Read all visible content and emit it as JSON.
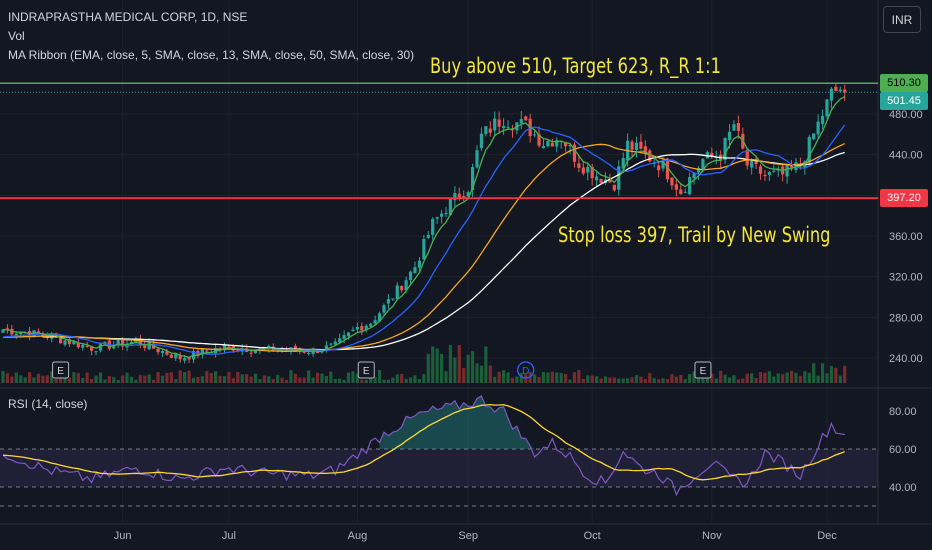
{
  "header": {
    "title": "INDRAPRASTHA MEDICAL CORP, 1D, NSE",
    "vol_label": "Vol",
    "ma_label": "MA Ribbon (EMA, close, 5, SMA, close, 13, SMA, close, 50, SMA, close, 30)"
  },
  "currency_button": "INR",
  "rsi_label": "RSI (14, close)",
  "annotations": {
    "buy": "Buy above 510, Target 623, R_R 1:1",
    "stop": "Stop loss 397, Trail by New Swing"
  },
  "price_labels": {
    "resistance": "510.30",
    "last": "501.45",
    "support": "397.20"
  },
  "colors": {
    "up": "#26a69a",
    "down": "#ef5350",
    "resistance_line": "#4caf50",
    "support_line": "#f23645",
    "ema5": "#4caf50",
    "sma13": "#2962ff",
    "sma30": "#f5a623",
    "sma50": "#ffffff",
    "rsi": "#7e57c2",
    "rsi_ma": "#fdd835"
  },
  "chart_data": [
    {
      "type": "candlestick",
      "title": "INDRAPRASTHA MEDICAL CORP, 1D, NSE",
      "x_ticks": [
        "Jun",
        "Jul",
        "Aug",
        "Sep",
        "Oct",
        "Nov",
        "Dec"
      ],
      "y_ticks": [
        240,
        280,
        320,
        360,
        400,
        440,
        480
      ],
      "y_range": [
        210,
        525
      ],
      "horizontal_levels": [
        {
          "name": "resistance",
          "value": 510.3
        },
        {
          "name": "support",
          "value": 397.2
        }
      ],
      "last_price": 501.45,
      "event_markers": [
        "E",
        "E",
        "D",
        "E"
      ],
      "close_keypoints": [
        [
          0,
          268
        ],
        [
          10,
          262
        ],
        [
          20,
          250
        ],
        [
          30,
          256
        ],
        [
          40,
          240
        ],
        [
          50,
          251
        ],
        [
          60,
          248
        ],
        [
          70,
          247
        ],
        [
          75,
          252
        ],
        [
          80,
          270
        ],
        [
          83,
          275
        ],
        [
          86,
          290
        ],
        [
          90,
          312
        ],
        [
          93,
          330
        ],
        [
          97,
          372
        ],
        [
          101,
          393
        ],
        [
          105,
          408
        ],
        [
          108,
          458
        ],
        [
          111,
          470
        ],
        [
          113,
          476
        ],
        [
          118,
          468
        ],
        [
          122,
          452
        ],
        [
          126,
          458
        ],
        [
          130,
          432
        ],
        [
          134,
          420
        ],
        [
          138,
          412
        ],
        [
          141,
          450
        ],
        [
          145,
          440
        ],
        [
          149,
          428
        ],
        [
          153,
          404
        ],
        [
          158,
          435
        ],
        [
          162,
          440
        ],
        [
          165,
          470
        ],
        [
          168,
          430
        ],
        [
          172,
          420
        ],
        [
          176,
          420
        ],
        [
          180,
          430
        ],
        [
          183,
          460
        ],
        [
          187,
          500
        ],
        [
          189,
          505
        ],
        [
          190,
          501.45
        ]
      ]
    },
    {
      "type": "line",
      "title": "RSI (14, close)",
      "y_ticks": [
        40,
        60,
        80
      ],
      "y_range": [
        30,
        90
      ],
      "bands": [
        30,
        40,
        60
      ],
      "rsi_keypoints": [
        [
          0,
          58
        ],
        [
          10,
          49
        ],
        [
          20,
          44
        ],
        [
          30,
          50
        ],
        [
          40,
          44
        ],
        [
          50,
          50
        ],
        [
          60,
          47
        ],
        [
          70,
          46
        ],
        [
          75,
          49
        ],
        [
          80,
          57
        ],
        [
          86,
          68
        ],
        [
          90,
          73
        ],
        [
          94,
          78
        ],
        [
          97,
          80
        ],
        [
          101,
          82
        ],
        [
          105,
          84
        ],
        [
          108,
          86
        ],
        [
          111,
          82
        ],
        [
          113,
          80
        ],
        [
          116,
          70
        ],
        [
          120,
          58
        ],
        [
          124,
          63
        ],
        [
          128,
          56
        ],
        [
          132,
          46
        ],
        [
          136,
          42
        ],
        [
          140,
          59
        ],
        [
          144,
          50
        ],
        [
          148,
          47
        ],
        [
          152,
          38
        ],
        [
          156,
          46
        ],
        [
          160,
          53
        ],
        [
          164,
          45
        ],
        [
          168,
          42
        ],
        [
          172,
          58
        ],
        [
          176,
          53
        ],
        [
          180,
          46
        ],
        [
          184,
          62
        ],
        [
          187,
          73
        ],
        [
          189,
          68
        ],
        [
          190,
          69
        ]
      ]
    }
  ]
}
